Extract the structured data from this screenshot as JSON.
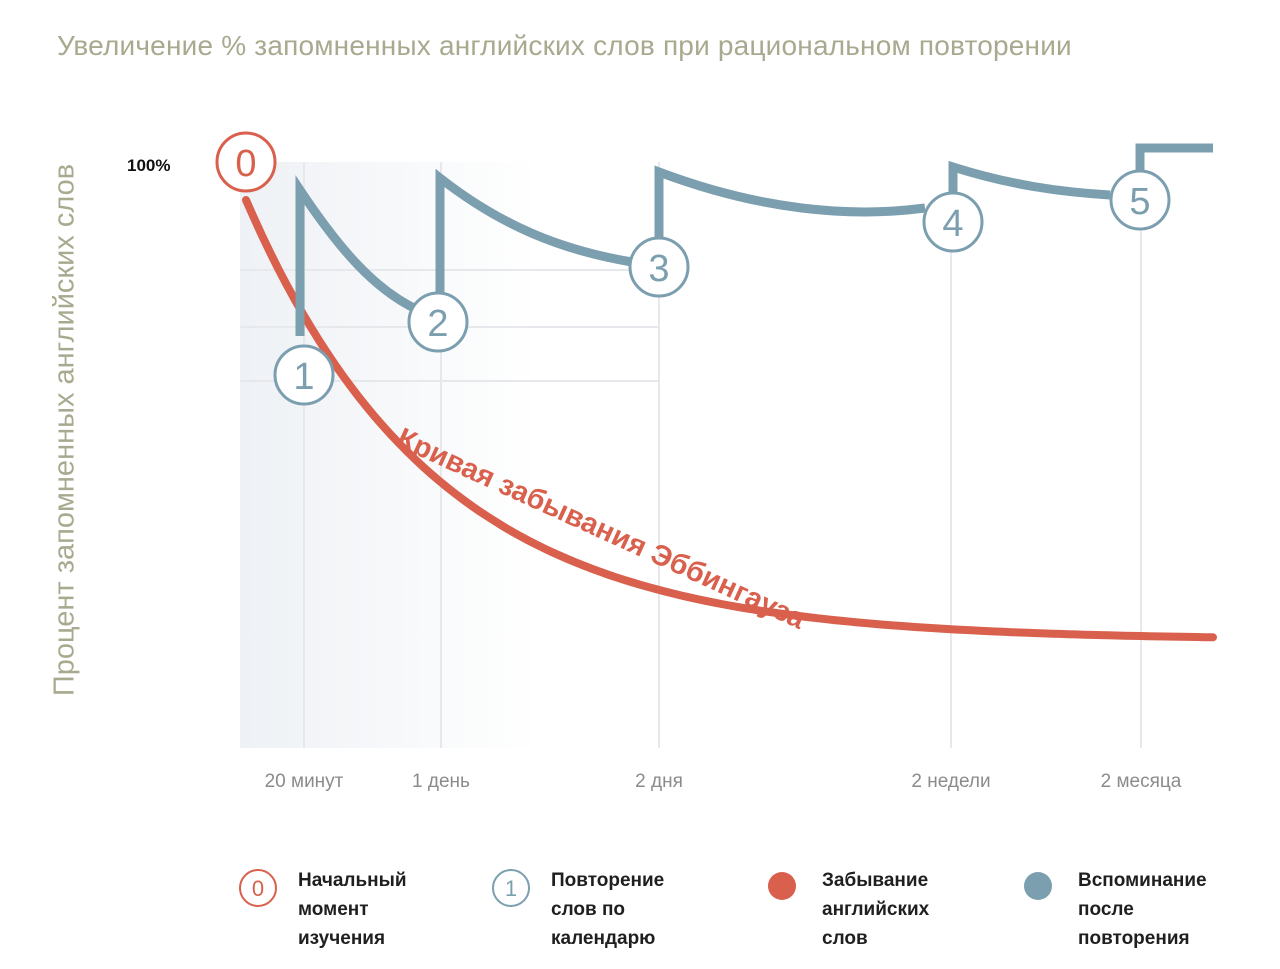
{
  "chart_data": {
    "type": "line",
    "title": "Увеличение % запомненных английских слов при рациональном повторении",
    "ylabel": "Процент запомненных английских слов",
    "ytick_label": "100%",
    "categories": [
      "20 минут",
      "1 день",
      "2 дня",
      "2 недели",
      "2 месяца"
    ],
    "curve_annotation": "Кривая забывания Эббингауза",
    "markers": [
      {
        "label": "0",
        "kind": "start",
        "y_percent": 100
      },
      {
        "label": "1",
        "kind": "repeat",
        "y_percent": 63
      },
      {
        "label": "2",
        "kind": "repeat",
        "y_percent": 72
      },
      {
        "label": "3",
        "kind": "repeat",
        "y_percent": 81
      },
      {
        "label": "4",
        "kind": "repeat",
        "y_percent": 90
      },
      {
        "label": "5",
        "kind": "repeat",
        "y_percent": 94
      }
    ],
    "colors": {
      "forgetting": "#d9604d",
      "recall": "#7c9fb0",
      "title": "#a9a98f",
      "grid": "#e6e8eb"
    }
  },
  "legend": [
    {
      "marker": "0",
      "style": "ring-red",
      "text": "Начальный\nмомент\nизучения"
    },
    {
      "marker": "1",
      "style": "ring-blue",
      "text": "Повторение\nслов по\nкалендарю"
    },
    {
      "marker": "",
      "style": "dot-red",
      "text": "Забывание\nанглийских\nслов"
    },
    {
      "marker": "",
      "style": "dot-blue",
      "text": "Вспоминание\nпосле\nповторения"
    }
  ]
}
